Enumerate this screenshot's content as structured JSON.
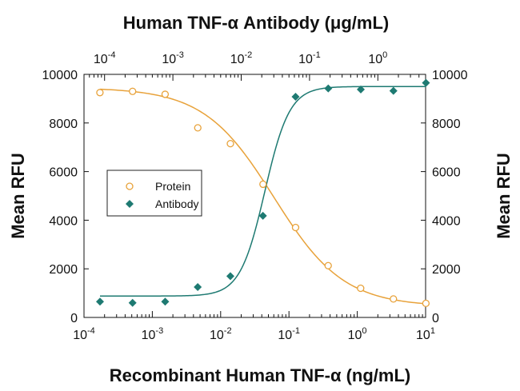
{
  "chart_data": {
    "type": "scatter",
    "title": "Human TNF-α Antibody (μg/mL)",
    "xlabel": "Recombinant Human TNF-α (ng/mL)",
    "ylabel_left": "Mean RFU",
    "ylabel_right": "Mean RFU",
    "x_scale": "log",
    "xlim": [
      0.0001,
      10
    ],
    "ylim": [
      0,
      10000
    ],
    "x_ticks": [
      0.0001,
      0.001,
      0.01,
      0.1,
      1,
      10
    ],
    "x_tick_labels": [
      {
        "base": "10",
        "exp": "-4"
      },
      {
        "base": "10",
        "exp": "-3"
      },
      {
        "base": "10",
        "exp": "-2"
      },
      {
        "base": "10",
        "exp": "-1"
      },
      {
        "base": "10",
        "exp": "0"
      },
      {
        "base": "10",
        "exp": "1"
      }
    ],
    "top_x_scale": "log",
    "top_xlim": [
      5e-05,
      5
    ],
    "top_x_ticks": [
      0.0001,
      0.001,
      0.01,
      0.1,
      1
    ],
    "top_x_tick_labels": [
      {
        "base": "10",
        "exp": "-4"
      },
      {
        "base": "10",
        "exp": "-3"
      },
      {
        "base": "10",
        "exp": "-2"
      },
      {
        "base": "10",
        "exp": "-1"
      },
      {
        "base": "10",
        "exp": "0"
      }
    ],
    "y_ticks": [
      0,
      2000,
      4000,
      6000,
      8000,
      10000
    ],
    "y_tick_labels": [
      "0",
      "2000",
      "4000",
      "6000",
      "8000",
      "10000"
    ],
    "legend": {
      "position": "center-left",
      "entries": [
        {
          "label": "Protein",
          "marker": "open-circle"
        },
        {
          "label": "Antibody",
          "marker": "filled-diamond"
        }
      ]
    },
    "grid": false,
    "series": [
      {
        "name": "Protein",
        "axis": "bottom",
        "color": "#e8a23a",
        "marker": "open-circle",
        "x": [
          0.000171,
          0.000514,
          0.00154,
          0.00463,
          0.0139,
          0.0417,
          0.125,
          0.375,
          1.12,
          3.38,
          10.1
        ],
        "y": [
          9250,
          9300,
          9180,
          7800,
          7150,
          5480,
          3700,
          2130,
          1200,
          760,
          580
        ],
        "fit": {
          "top": 9450,
          "bottom": 450,
          "ec50": 0.06,
          "hill": -0.85
        }
      },
      {
        "name": "Antibody",
        "axis": "top",
        "color": "#1e7a72",
        "marker": "filled-diamond",
        "x": [
          8.57e-05,
          0.000257,
          0.000771,
          0.00231,
          0.00694,
          0.0208,
          0.0625,
          0.188,
          0.563,
          1.69,
          5.06
        ],
        "y": [
          650,
          600,
          650,
          1250,
          1700,
          4180,
          9080,
          9420,
          9380,
          9320,
          9650
        ],
        "fit": {
          "top": 9500,
          "bottom": 880,
          "ec50": 0.0222,
          "hill": 2.4
        }
      }
    ]
  }
}
